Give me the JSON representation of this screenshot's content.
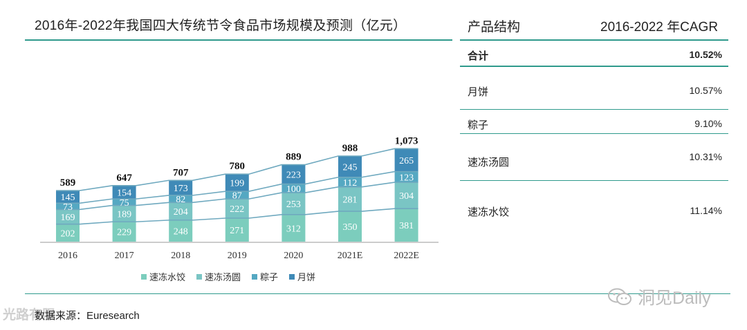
{
  "chart_data": {
    "type": "stacked-bar",
    "title": "2016年-2022年我国四大传统节令食品市场规模及预测（亿元）",
    "categories": [
      "2016",
      "2017",
      "2018",
      "2019",
      "2020",
      "2021E",
      "2022E"
    ],
    "series": [
      {
        "name": "速冻水饺",
        "color": "#7ccdbd",
        "values": [
          202,
          229,
          248,
          271,
          312,
          350,
          381
        ]
      },
      {
        "name": "速冻汤圆",
        "color": "#7ac5c4",
        "values": [
          169,
          189,
          204,
          222,
          253,
          281,
          304
        ]
      },
      {
        "name": "粽子",
        "color": "#55a8c2",
        "values": [
          73,
          75,
          82,
          87,
          100,
          112,
          123
        ]
      },
      {
        "name": "月饼",
        "color": "#3f8ab7",
        "values": [
          145,
          154,
          173,
          199,
          223,
          245,
          265
        ]
      }
    ],
    "totals": [
      "589",
      "647",
      "707",
      "780",
      "889",
      "988",
      "1,073"
    ],
    "ylim": [
      0,
      1100
    ],
    "grid": false,
    "legend": "bottom"
  },
  "table": {
    "header_product": "产品结构",
    "header_cagr": "2016-2022 年CAGR",
    "rows": [
      {
        "label": "合计",
        "value": "10.52%"
      },
      {
        "label": "月饼",
        "value": "10.57%"
      },
      {
        "label": "粽子",
        "value": "9.10%"
      },
      {
        "label": "速冻汤圆",
        "value": "10.31%"
      },
      {
        "label": "速冻水饺",
        "value": "11.14%"
      }
    ]
  },
  "source": "数据来源：Euresearch",
  "watermarks": {
    "left": "光路有限",
    "right": "洞见Daily"
  },
  "colors": {
    "accent": "#2e9a8c",
    "line": "#6fa9bf"
  }
}
